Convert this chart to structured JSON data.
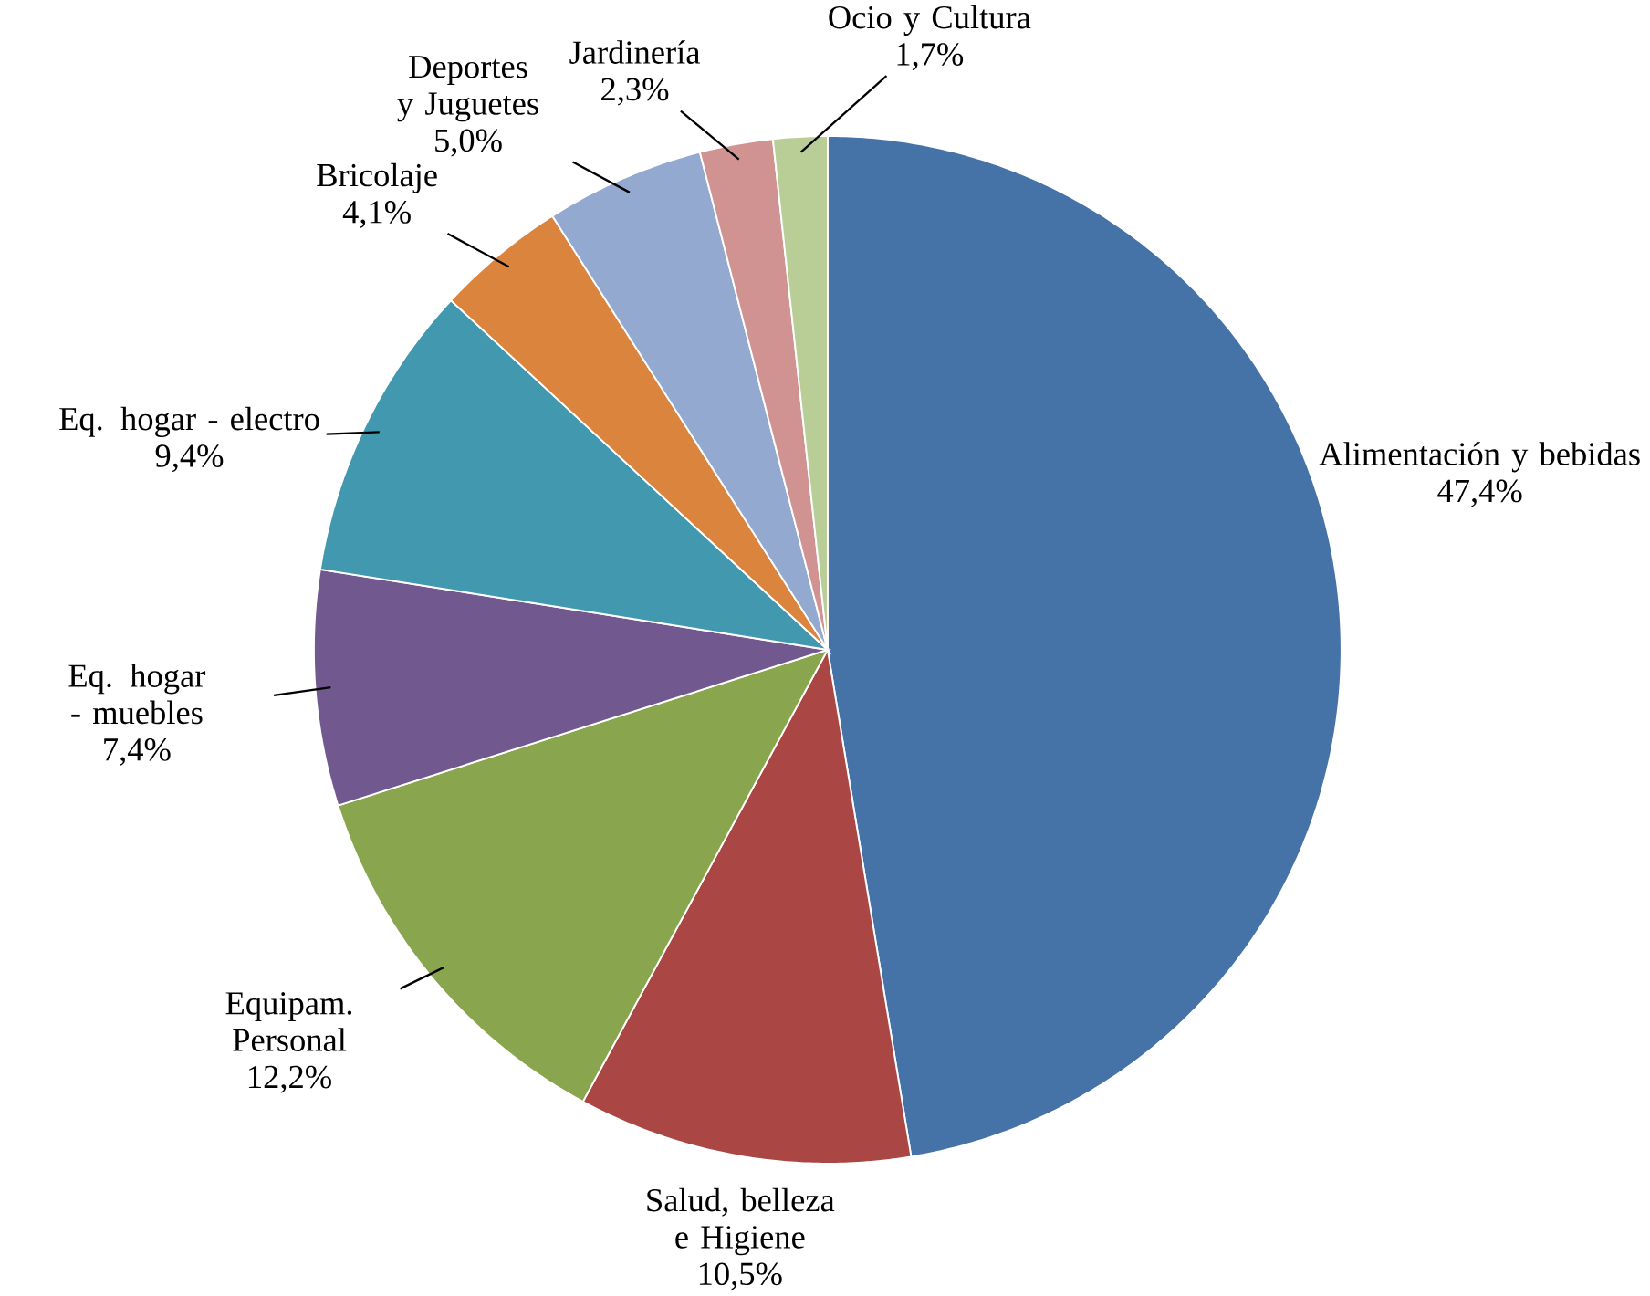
{
  "chart_data": {
    "type": "pie",
    "categories": [
      "Alimentación y bebidas",
      "Salud, belleza e Higiene",
      "Equipam. Personal",
      "Eq. hogar - muebles",
      "Eq. hogar - electro",
      "Bricolaje",
      "Deportes y Juguetes",
      "Jardinería",
      "Ocio y Cultura"
    ],
    "values": [
      47.4,
      10.5,
      12.2,
      7.4,
      9.4,
      4.1,
      5.0,
      2.3,
      1.7
    ],
    "value_labels": [
      "47,4%",
      "10,5%",
      "12,2%",
      "7,4%",
      "9,4%",
      "4,1%",
      "5,0%",
      "2,3%",
      "1,7%"
    ],
    "colors": [
      "#4572a7",
      "#aa4643",
      "#89a54e",
      "#71588f",
      "#4198af",
      "#db843d",
      "#93a9cf",
      "#d19392",
      "#b9cd96"
    ]
  }
}
